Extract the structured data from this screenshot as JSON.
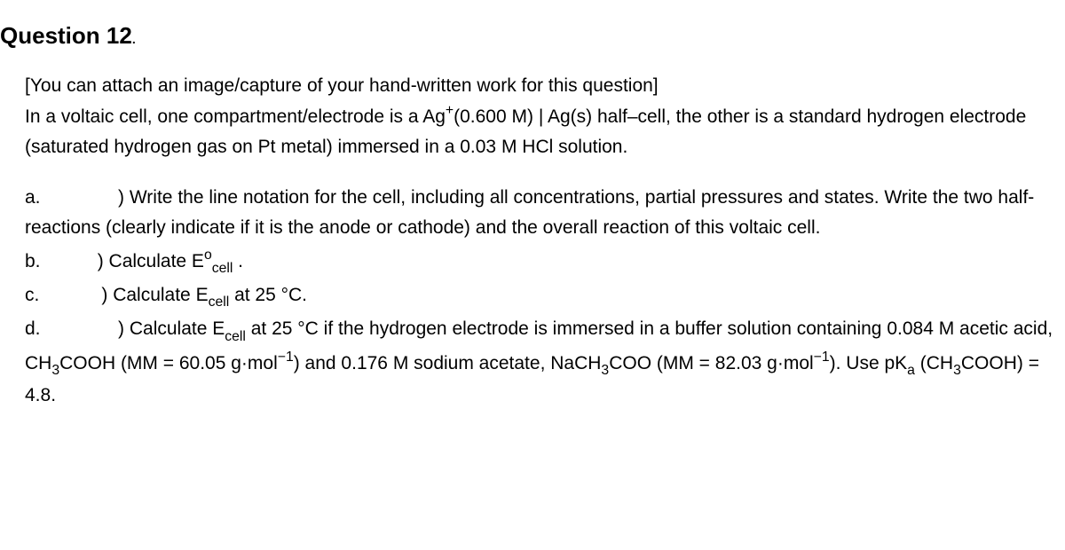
{
  "title_prefix": "Question 12",
  "title_dot": ".",
  "intro_line1": "[You can attach an image/capture of your hand-written work for this question]",
  "intro_line2_p1": "In a voltaic cell, one compartment/electrode is a Ag",
  "intro_line2_sup": "+",
  "intro_line2_p2": "(0.600 M) | Ag(s) half–cell, the other is a standard hydrogen electrode (saturated hydrogen gas on Pt metal) immersed in a 0.03 M HCl solution.",
  "a_label": "a.",
  "a_text": "  ) Write the line notation for the cell, including all concentrations, partial pressures and states. Write the two half-reactions (clearly indicate if it is the anode or cathode) and the overall reaction of this voltaic cell.",
  "b_label": "b.",
  "b_text1": " ) Calculate E",
  "b_sup": "o",
  "b_sub": "cell",
  "b_end": " .",
  "c_label": "c.",
  "c_text1": " ) Calculate E",
  "c_sub": "cell",
  "c_text2": " at 25 °C.",
  "d_label": "d.",
  "d_text1": "  ) Calculate E",
  "d_sub": "cell",
  "d_text2": " at 25 °C if the hydrogen electrode is immersed in a buffer solution containing 0.084 M acetic acid, CH",
  "d_sub3a": "3",
  "d_text3": "COOH (MM = 60.05 g·mol",
  "d_sup_neg1a": "−1",
  "d_text4": ") and 0.176 M sodium acetate, NaCH",
  "d_sub3b": "3",
  "d_text5": "COO (MM = 82.03 g·mol",
  "d_sup_neg1b": "−1",
  "d_text6": "). Use pK",
  "d_sub_a": "a",
  "d_text7": " (CH",
  "d_sub3c": "3",
  "d_text8": "COOH) = 4.8."
}
